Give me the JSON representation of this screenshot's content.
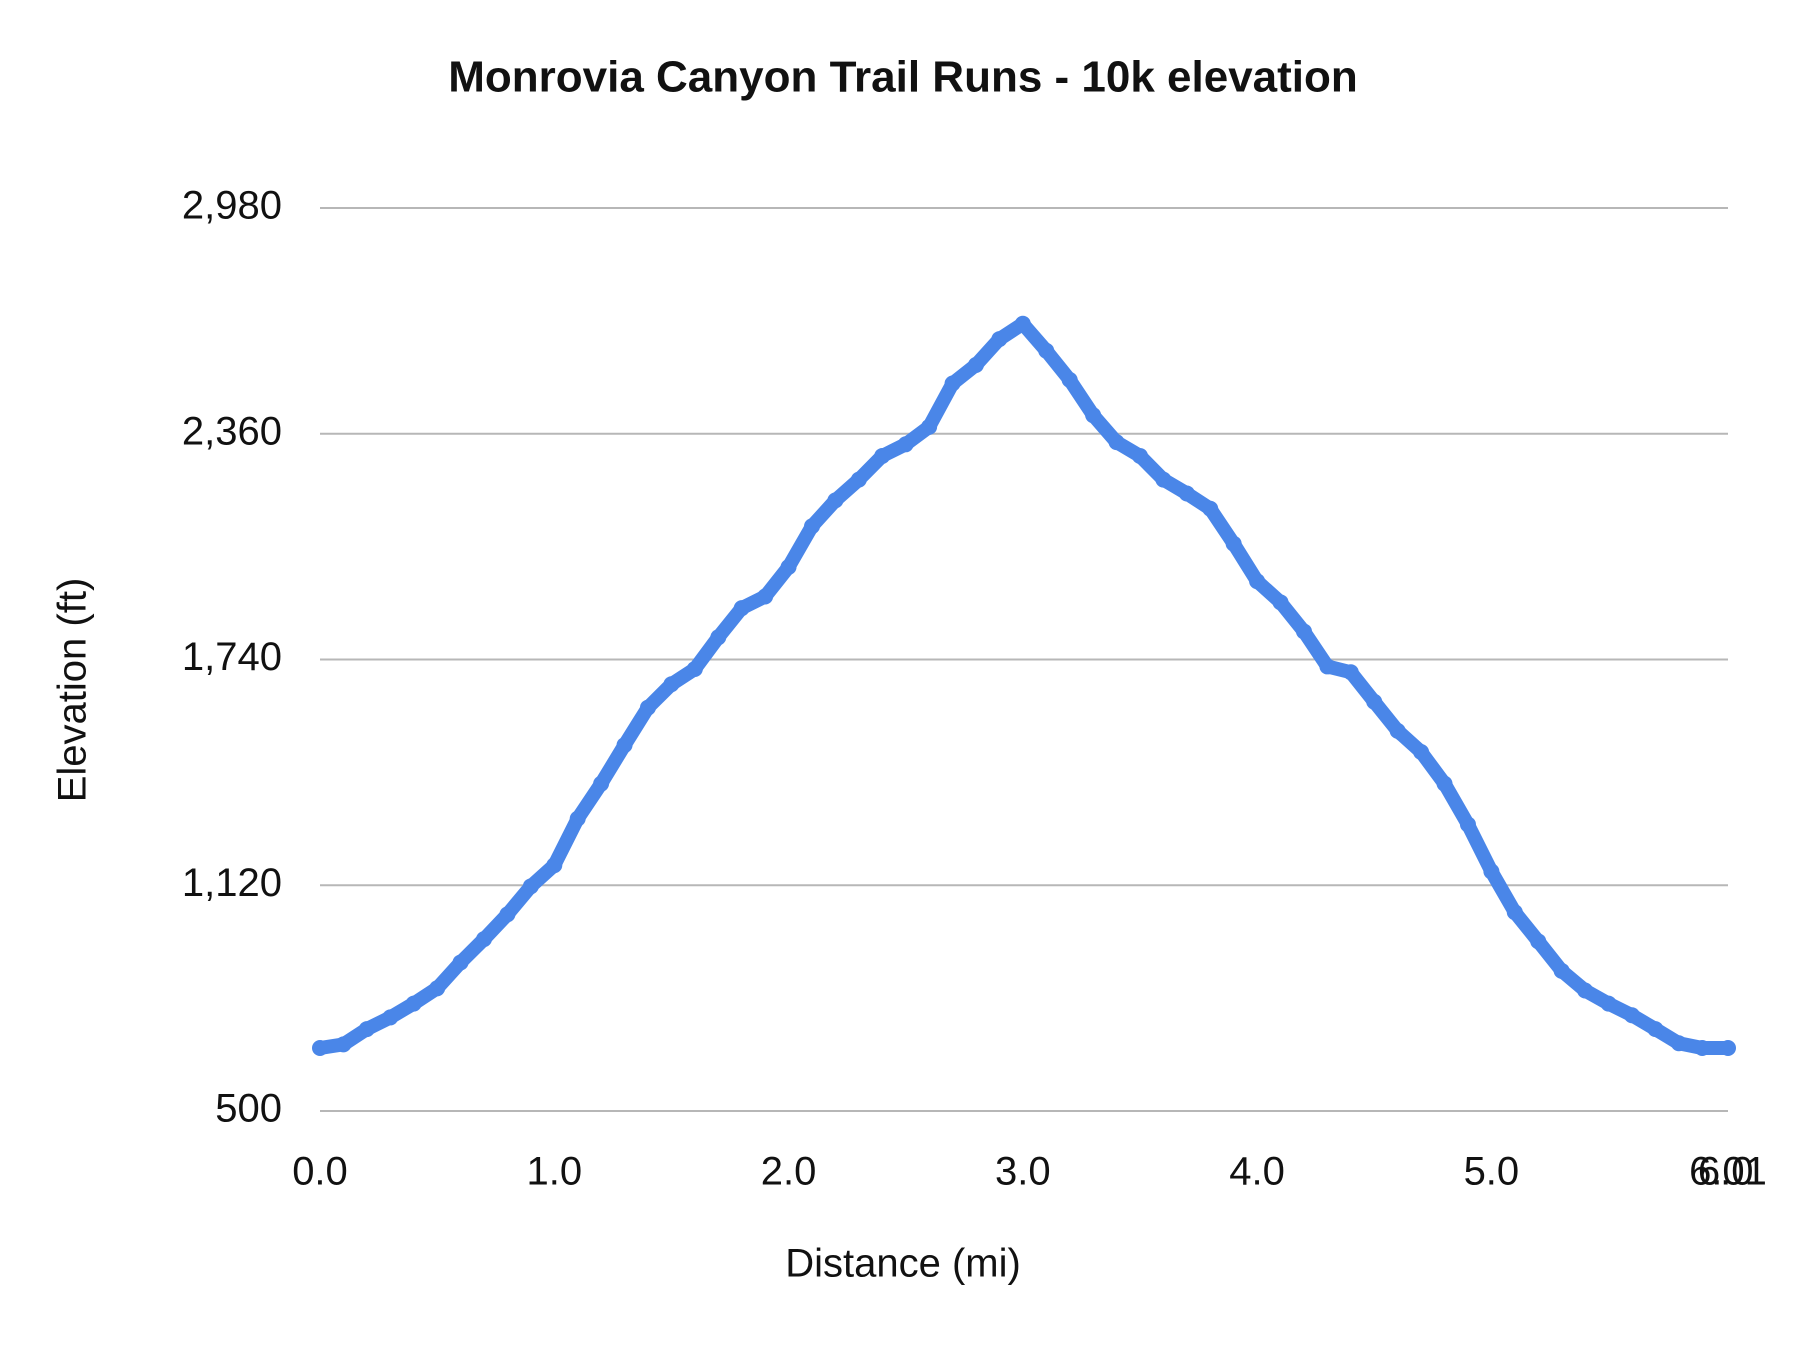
{
  "chart_data": {
    "type": "line",
    "title": "Monrovia Canyon Trail Runs - 10k elevation",
    "x_label": "Distance (mi)",
    "y_label": "Elevation (ft)",
    "x": [
      0,
      0.1,
      0.2,
      0.3,
      0.4,
      0.5,
      0.6,
      0.7,
      0.8,
      0.9,
      1.0,
      1.1,
      1.2,
      1.3,
      1.4,
      1.5,
      1.6,
      1.7,
      1.8,
      1.9,
      2.0,
      2.1,
      2.2,
      2.3,
      2.4,
      2.5,
      2.6,
      2.7,
      2.8,
      2.9,
      3.0,
      3.1,
      3.2,
      3.3,
      3.4,
      3.5,
      3.6,
      3.7,
      3.8,
      3.9,
      4.0,
      4.1,
      4.2,
      4.3,
      4.4,
      4.5,
      4.6,
      4.7,
      4.8,
      4.9,
      5.0,
      5.1,
      5.2,
      5.3,
      5.4,
      5.5,
      5.6,
      5.7,
      5.8,
      5.9,
      6.01
    ],
    "series": [
      {
        "name": "Elevation",
        "color": "#4a86e8",
        "values": [
          673,
          683,
          725,
          757,
          795,
          837,
          908,
          972,
          1040,
          1117,
          1175,
          1303,
          1399,
          1505,
          1608,
          1672,
          1714,
          1801,
          1881,
          1913,
          1994,
          2106,
          2177,
          2234,
          2299,
          2331,
          2379,
          2498,
          2549,
          2620,
          2662,
          2588,
          2508,
          2411,
          2337,
          2299,
          2234,
          2196,
          2154,
          2058,
          1955,
          1897,
          1817,
          1721,
          1705,
          1624,
          1544,
          1486,
          1399,
          1287,
          1158,
          1046,
          966,
          885,
          831,
          795,
          763,
          725,
          686,
          673,
          673
        ]
      }
    ],
    "xlim": [
      0,
      6.01
    ],
    "xticks": [
      {
        "value": 0,
        "label": "0.0"
      },
      {
        "value": 1,
        "label": "1.0"
      },
      {
        "value": 2,
        "label": "2.0"
      },
      {
        "value": 3,
        "label": "3.0"
      },
      {
        "value": 4,
        "label": "4.0"
      },
      {
        "value": 5,
        "label": "5.0"
      },
      {
        "value": 6,
        "label": "6.0"
      },
      6.01
    ],
    "ylim": [
      500,
      2980
    ],
    "yticks": [
      500,
      {
        "value": 1120,
        "label": "1,120"
      },
      {
        "value": 1740,
        "label": "1,740"
      },
      {
        "value": 2360,
        "label": "2,360"
      },
      {
        "value": 2980,
        "label": "2,980"
      }
    ],
    "grid": true
  }
}
